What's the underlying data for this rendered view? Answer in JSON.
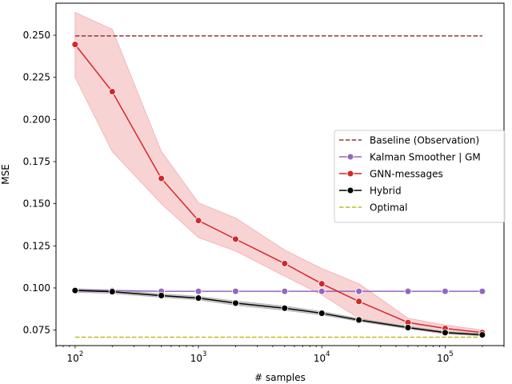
{
  "chart_data": {
    "type": "line",
    "xlabel": "# samples",
    "ylabel": "MSE",
    "x_scale": "log",
    "xlim": [
      70,
      300000
    ],
    "ylim": [
      0.0658,
      0.269
    ],
    "x_ticks": [
      {
        "value": 100,
        "base": "10",
        "exp": "2"
      },
      {
        "value": 1000,
        "base": "10",
        "exp": "3"
      },
      {
        "value": 10000,
        "base": "10",
        "exp": "4"
      },
      {
        "value": 100000,
        "base": "10",
        "exp": "5"
      }
    ],
    "y_ticks": [
      {
        "value": 0.075,
        "label": "0.075"
      },
      {
        "value": 0.1,
        "label": "0.100"
      },
      {
        "value": 0.125,
        "label": "0.125"
      },
      {
        "value": 0.15,
        "label": "0.150"
      },
      {
        "value": 0.175,
        "label": "0.175"
      },
      {
        "value": 0.2,
        "label": "0.200"
      },
      {
        "value": 0.225,
        "label": "0.225"
      },
      {
        "value": 0.25,
        "label": "0.250"
      }
    ],
    "grid": false,
    "legend_position": "center-right",
    "series": [
      {
        "name": "Baseline (Observation)",
        "color": "#8c3b3b",
        "style": "dashed",
        "marker": false,
        "x": [
          100,
          200000
        ],
        "y": [
          0.2496,
          0.2496
        ]
      },
      {
        "name": "Kalman Smoother | GM",
        "color": "#9467bd",
        "style": "solid",
        "marker": true,
        "x": [
          100,
          200,
          500,
          1000,
          2000,
          5000,
          10000,
          20000,
          50000,
          100000,
          200000
        ],
        "y": [
          0.0988,
          0.0985,
          0.098,
          0.098,
          0.098,
          0.098,
          0.098,
          0.098,
          0.098,
          0.098,
          0.098
        ]
      },
      {
        "name": "GNN-messages",
        "color": "#d62728",
        "style": "solid",
        "marker": true,
        "band_color": "#f4b6b8",
        "x": [
          100,
          200,
          500,
          1000,
          2000,
          5000,
          10000,
          20000,
          50000,
          100000,
          200000
        ],
        "y": [
          0.2445,
          0.2165,
          0.165,
          0.14,
          0.129,
          0.1145,
          0.1025,
          0.092,
          0.0795,
          0.076,
          0.0735
        ],
        "y_lower": [
          0.225,
          0.181,
          0.15,
          0.13,
          0.122,
          0.107,
          0.096,
          0.082,
          0.0765,
          0.074,
          0.072
        ],
        "y_upper": [
          0.2635,
          0.2535,
          0.181,
          0.1505,
          0.1415,
          0.1225,
          0.1115,
          0.1025,
          0.082,
          0.078,
          0.075
        ]
      },
      {
        "name": "Hybrid",
        "color": "#000000",
        "style": "solid",
        "marker": true,
        "band_color": "#b0b0b0",
        "x": [
          100,
          200,
          500,
          1000,
          2000,
          5000,
          10000,
          20000,
          50000,
          100000,
          200000
        ],
        "y": [
          0.0985,
          0.0978,
          0.0955,
          0.094,
          0.091,
          0.088,
          0.085,
          0.081,
          0.0765,
          0.0735,
          0.0722
        ],
        "y_lower": [
          0.0975,
          0.0968,
          0.0945,
          0.093,
          0.0898,
          0.0868,
          0.084,
          0.0802,
          0.0758,
          0.0728,
          0.0716
        ],
        "y_upper": [
          0.0995,
          0.0988,
          0.0965,
          0.095,
          0.0922,
          0.0892,
          0.086,
          0.0818,
          0.0772,
          0.0742,
          0.0728
        ]
      },
      {
        "name": "Optimal",
        "color": "#bcbd22",
        "style": "dashed",
        "marker": false,
        "x": [
          100,
          200000
        ],
        "y": [
          0.0708,
          0.0708
        ]
      }
    ]
  }
}
